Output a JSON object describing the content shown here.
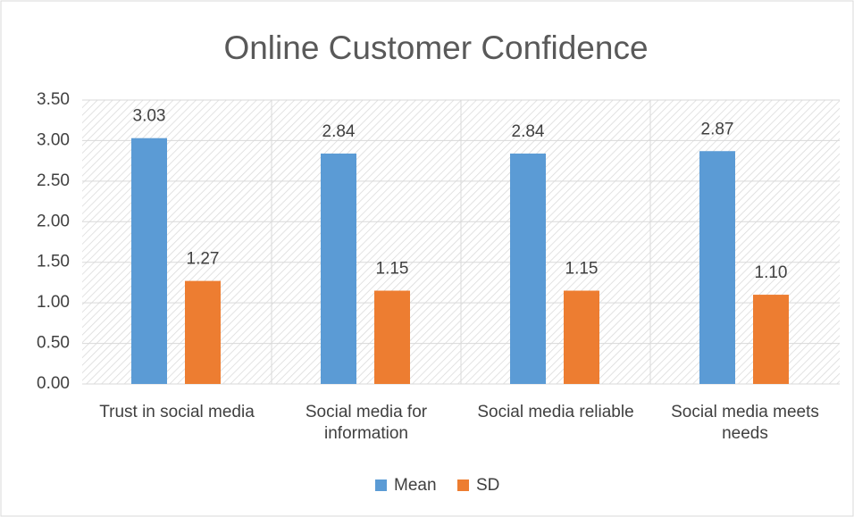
{
  "chart_data": {
    "type": "bar",
    "title": "Online Customer Confidence",
    "categories": [
      "Trust in social media",
      "Social media for information",
      "Social media reliable",
      "Social media meets needs"
    ],
    "series": [
      {
        "name": "Mean",
        "color": "#5b9bd5",
        "values": [
          3.03,
          2.84,
          2.84,
          2.87
        ],
        "value_labels": [
          "3.03",
          "2.84",
          "2.84",
          "2.87"
        ]
      },
      {
        "name": "SD",
        "color": "#ed7d31",
        "values": [
          1.27,
          1.15,
          1.15,
          1.1
        ],
        "value_labels": [
          "1.27",
          "1.15",
          "1.15",
          "1.10"
        ]
      }
    ],
    "ylim": [
      0,
      3.5
    ],
    "yticks": [
      {
        "value": 0,
        "label": "0.00"
      },
      {
        "value": 0.5,
        "label": "0.50"
      },
      {
        "value": 1,
        "label": "1.00"
      },
      {
        "value": 1.5,
        "label": "1.50"
      },
      {
        "value": 2,
        "label": "2.00"
      },
      {
        "value": 2.5,
        "label": "2.50"
      },
      {
        "value": 3,
        "label": "3.00"
      },
      {
        "value": 3.5,
        "label": "3.50"
      }
    ],
    "grid": true,
    "legend": "bottom"
  }
}
